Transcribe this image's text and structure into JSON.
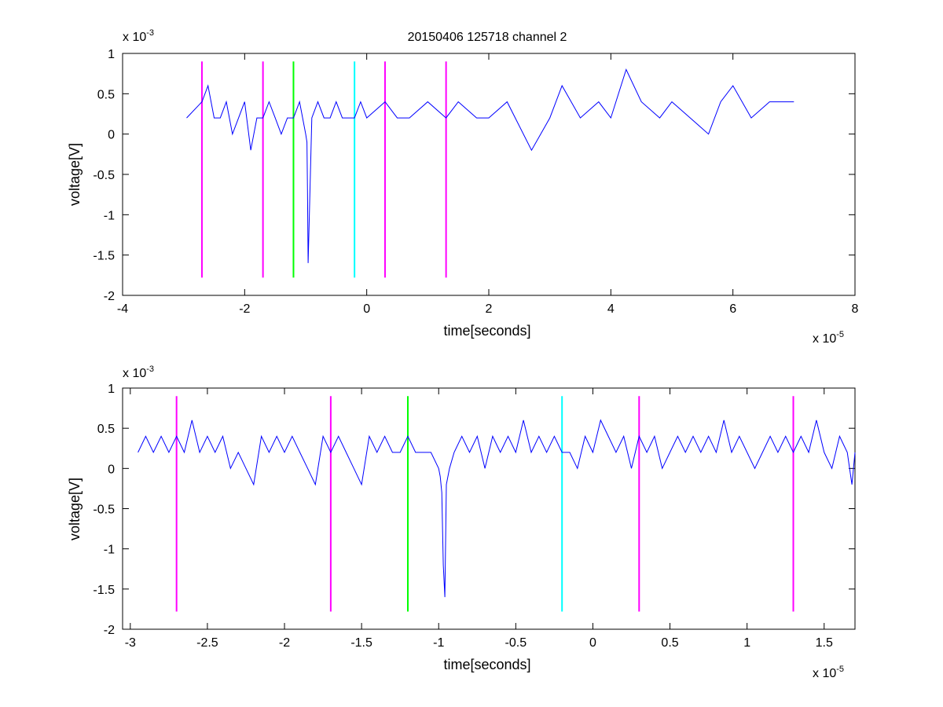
{
  "figure_title": "20150406 125718 channel 2",
  "colors": {
    "signal": "#0000ff",
    "magenta": "#ff00ff",
    "green": "#00ff00",
    "cyan": "#00ffff",
    "axes": "#000000"
  },
  "chart_data": [
    {
      "type": "line",
      "title": "20150406 125718 channel 2",
      "xlabel": "time[seconds]",
      "ylabel": "voltage[V]",
      "x_multiplier": "x 10",
      "x_exponent": "-5",
      "y_multiplier": "x 10",
      "y_exponent": "-3",
      "xlim": [
        -4,
        8
      ],
      "ylim": [
        -2,
        1
      ],
      "xticks": [
        -4,
        -2,
        0,
        2,
        4,
        6,
        8
      ],
      "xtick_labels": [
        "-4",
        "-2",
        "0",
        "2",
        "4",
        "6",
        "8"
      ],
      "yticks": [
        1,
        0.5,
        0,
        -0.5,
        -1,
        -1.5,
        -2
      ],
      "ytick_labels": [
        "1",
        "0.5",
        "0",
        "-0.5",
        "-1",
        "-1.5",
        "-2"
      ],
      "grid": false,
      "vlines": [
        {
          "x": -2.7,
          "y_range": [
            -1.78,
            0.9
          ],
          "color": "magenta"
        },
        {
          "x": -1.7,
          "y_range": [
            -1.78,
            0.9
          ],
          "color": "magenta"
        },
        {
          "x": -1.2,
          "y_range": [
            -1.78,
            0.9
          ],
          "color": "green"
        },
        {
          "x": -0.2,
          "y_range": [
            -1.78,
            0.9
          ],
          "color": "cyan"
        },
        {
          "x": 0.3,
          "y_range": [
            -1.78,
            0.9
          ],
          "color": "magenta"
        },
        {
          "x": 1.3,
          "y_range": [
            -1.78,
            0.9
          ],
          "color": "magenta"
        }
      ],
      "series": [
        {
          "color": "signal",
          "x": [
            -2.95,
            -2.7,
            -2.6,
            -2.5,
            -2.4,
            -2.3,
            -2.2,
            -2.1,
            -2.0,
            -1.9,
            -1.8,
            -1.7,
            -1.6,
            -1.5,
            -1.4,
            -1.3,
            -1.2,
            -1.1,
            -1.05,
            -1.0,
            -0.98,
            -0.97,
            -0.96,
            -0.9,
            -0.8,
            -0.7,
            -0.6,
            -0.5,
            -0.4,
            -0.3,
            -0.2,
            -0.1,
            0,
            0.3,
            0.5,
            0.7,
            1.0,
            1.3,
            1.5,
            1.8,
            2.0,
            2.3,
            2.7,
            3.0,
            3.2,
            3.5,
            3.8,
            4.0,
            4.25,
            4.5,
            4.8,
            5.0,
            5.3,
            5.6,
            5.8,
            6.0,
            6.3,
            6.6,
            7.0
          ],
          "y": [
            0.2,
            0.4,
            0.6,
            0.2,
            0.2,
            0.4,
            0.0,
            0.2,
            0.4,
            -0.2,
            0.2,
            0.2,
            0.4,
            0.2,
            0.0,
            0.2,
            0.2,
            0.4,
            0.2,
            0.0,
            -0.1,
            -0.7,
            -1.6,
            0.2,
            0.4,
            0.2,
            0.2,
            0.4,
            0.2,
            0.2,
            0.2,
            0.4,
            0.2,
            0.4,
            0.2,
            0.2,
            0.4,
            0.2,
            0.4,
            0.2,
            0.2,
            0.4,
            -0.2,
            0.2,
            0.6,
            0.2,
            0.4,
            0.2,
            0.8,
            0.4,
            0.2,
            0.4,
            0.2,
            0.0,
            0.4,
            0.6,
            0.2,
            0.4,
            0.4
          ]
        }
      ]
    },
    {
      "type": "line",
      "xlabel": "time[seconds]",
      "ylabel": "voltage[V]",
      "x_multiplier": "x 10",
      "x_exponent": "-5",
      "y_multiplier": "x 10",
      "y_exponent": "-3",
      "xlim": [
        -3.05,
        1.7
      ],
      "ylim": [
        -2,
        1
      ],
      "xticks": [
        -3,
        -2.5,
        -2,
        -1.5,
        -1,
        -0.5,
        0,
        0.5,
        1,
        1.5
      ],
      "xtick_labels": [
        "-3",
        "-2.5",
        "-2",
        "-1.5",
        "-1",
        "-0.5",
        "0",
        "0.5",
        "1",
        "1.5"
      ],
      "yticks": [
        1,
        0.5,
        0,
        -0.5,
        -1,
        -1.5,
        -2
      ],
      "ytick_labels": [
        "1",
        "0.5",
        "0",
        "-0.5",
        "-1",
        "-1.5",
        "-2"
      ],
      "grid": false,
      "vlines": [
        {
          "x": -2.7,
          "y_range": [
            -1.78,
            0.9
          ],
          "color": "magenta"
        },
        {
          "x": -1.7,
          "y_range": [
            -1.78,
            0.9
          ],
          "color": "magenta"
        },
        {
          "x": -1.2,
          "y_range": [
            -1.78,
            0.9
          ],
          "color": "green"
        },
        {
          "x": -0.2,
          "y_range": [
            -1.78,
            0.9
          ],
          "color": "cyan"
        },
        {
          "x": 0.3,
          "y_range": [
            -1.78,
            0.9
          ],
          "color": "magenta"
        },
        {
          "x": 1.3,
          "y_range": [
            -1.78,
            0.9
          ],
          "color": "magenta"
        }
      ],
      "series": [
        {
          "color": "signal",
          "x": [
            -2.95,
            -2.9,
            -2.85,
            -2.8,
            -2.75,
            -2.7,
            -2.65,
            -2.6,
            -2.55,
            -2.5,
            -2.45,
            -2.4,
            -2.35,
            -2.3,
            -2.25,
            -2.2,
            -2.15,
            -2.1,
            -2.05,
            -2.0,
            -1.95,
            -1.9,
            -1.85,
            -1.8,
            -1.75,
            -1.7,
            -1.65,
            -1.6,
            -1.55,
            -1.5,
            -1.45,
            -1.4,
            -1.35,
            -1.3,
            -1.25,
            -1.2,
            -1.15,
            -1.1,
            -1.05,
            -1.0,
            -0.99,
            -0.98,
            -0.97,
            -0.96,
            -0.95,
            -0.93,
            -0.9,
            -0.85,
            -0.8,
            -0.75,
            -0.7,
            -0.65,
            -0.6,
            -0.55,
            -0.5,
            -0.45,
            -0.4,
            -0.35,
            -0.3,
            -0.25,
            -0.2,
            -0.15,
            -0.1,
            -0.05,
            0,
            0.05,
            0.1,
            0.15,
            0.2,
            0.25,
            0.3,
            0.35,
            0.4,
            0.45,
            0.5,
            0.55,
            0.6,
            0.65,
            0.7,
            0.75,
            0.8,
            0.85,
            0.9,
            0.95,
            1.0,
            1.05,
            1.1,
            1.15,
            1.2,
            1.25,
            1.3,
            1.35,
            1.4,
            1.45,
            1.5,
            1.55,
            1.6,
            1.65,
            1.68,
            1.7
          ],
          "y": [
            0.2,
            0.4,
            0.2,
            0.4,
            0.2,
            0.4,
            0.2,
            0.6,
            0.2,
            0.4,
            0.2,
            0.4,
            0.0,
            0.2,
            0.0,
            -0.2,
            0.4,
            0.2,
            0.4,
            0.2,
            0.4,
            0.2,
            0.0,
            -0.2,
            0.4,
            0.2,
            0.4,
            0.2,
            0.0,
            -0.2,
            0.4,
            0.2,
            0.4,
            0.2,
            0.2,
            0.4,
            0.2,
            0.2,
            0.2,
            0.0,
            -0.1,
            -0.3,
            -1.2,
            -1.6,
            -0.2,
            0.0,
            0.2,
            0.4,
            0.2,
            0.4,
            0.0,
            0.4,
            0.2,
            0.4,
            0.2,
            0.6,
            0.2,
            0.4,
            0.2,
            0.4,
            0.2,
            0.2,
            0.0,
            0.4,
            0.2,
            0.6,
            0.4,
            0.2,
            0.4,
            0.0,
            0.4,
            0.2,
            0.4,
            0.0,
            0.2,
            0.4,
            0.2,
            0.4,
            0.2,
            0.4,
            0.2,
            0.6,
            0.2,
            0.4,
            0.2,
            0.0,
            0.2,
            0.4,
            0.2,
            0.4,
            0.2,
            0.4,
            0.2,
            0.6,
            0.2,
            0.0,
            0.4,
            0.2,
            -0.2,
            0.2
          ]
        }
      ]
    }
  ]
}
